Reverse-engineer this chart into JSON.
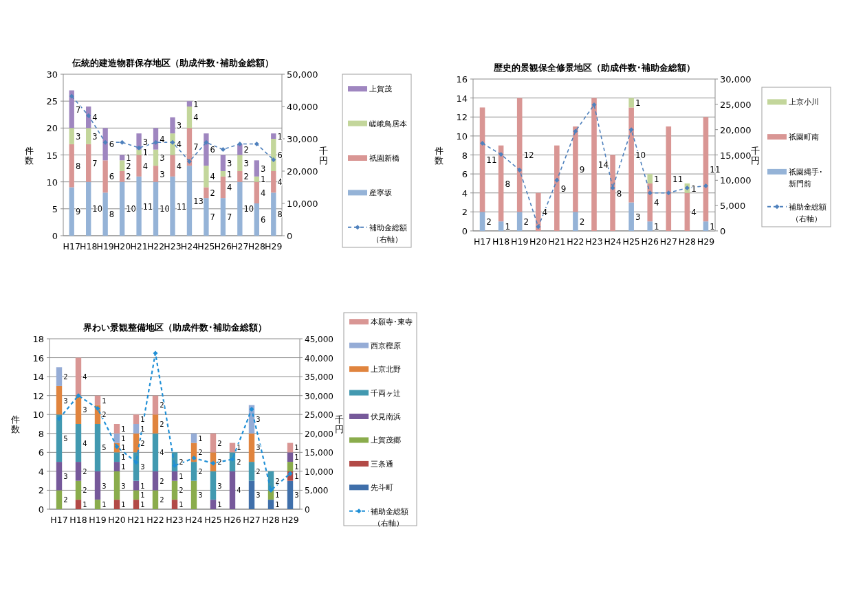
{
  "chart_data": [
    {
      "type": "bar",
      "title": "伝統的建造物群保存地区（助成件数･補助金総額）",
      "stacked": true,
      "grid": "y",
      "legend": "right",
      "ylabel": "件数",
      "y2label": "千円",
      "categories": [
        "H17",
        "H18",
        "H19",
        "H20",
        "H21",
        "H22",
        "H23",
        "H24",
        "H25",
        "H26",
        "H27",
        "H28",
        "H29"
      ],
      "ylim": [
        0,
        30
      ],
      "yticks": [
        0,
        5,
        10,
        15,
        20,
        25,
        30
      ],
      "y2lim": [
        0,
        50000
      ],
      "y2ticks": [
        {
          "value": 0,
          "label": "0"
        },
        {
          "value": 10000,
          "label": "10,000"
        },
        {
          "value": 20000,
          "label": "20,000"
        },
        {
          "value": 30000,
          "label": "30,000"
        },
        {
          "value": 40000,
          "label": "40,000"
        },
        {
          "value": 50000,
          "label": "50,000"
        }
      ],
      "series": [
        {
          "name": "産寧坂",
          "color": "#95b3d7",
          "values": [
            9,
            10,
            8,
            10,
            11,
            10,
            11,
            13,
            7,
            7,
            10,
            6,
            8
          ],
          "value_labels": [
            "9",
            "10",
            "8",
            "10",
            "11",
            "10",
            "11",
            "13",
            "7",
            "7",
            "10",
            "6",
            "8"
          ]
        },
        {
          "name": "祇園新橋",
          "color": "#d99694",
          "values": [
            8,
            7,
            6,
            2,
            4,
            3,
            4,
            7,
            2,
            4,
            2,
            4,
            4
          ],
          "value_labels": [
            "8",
            "7",
            "6",
            "2",
            "4",
            "3",
            "4",
            "7",
            "2",
            "4",
            "2",
            "4",
            "4"
          ]
        },
        {
          "name": "嵯峨鳥居本",
          "color": "#c3d69b",
          "values": [
            3,
            3,
            null,
            2,
            1,
            3,
            4,
            4,
            4,
            1,
            3,
            1,
            6
          ],
          "value_labels": [
            "3",
            "3",
            null,
            "2",
            "1",
            "3",
            "4",
            "4",
            "4",
            "1",
            "3",
            "1",
            "6"
          ]
        },
        {
          "name": "上賀茂",
          "color": "#9f86c0",
          "values": [
            7,
            4,
            6,
            1,
            3,
            4,
            3,
            1,
            6,
            3,
            2,
            3,
            1
          ],
          "value_labels": [
            "7",
            "4",
            "6",
            "1",
            "3",
            "4",
            "3",
            "1",
            "6",
            "3",
            "2",
            "3",
            "1"
          ]
        },
        {
          "name": "補助金総額（右軸）",
          "type": "line",
          "axis": "y2",
          "marker": "diamond",
          "line_style": "dashed",
          "color": "#4f81bd",
          "values": [
            43200,
            37200,
            28900,
            28900,
            27200,
            28900,
            28900,
            23000,
            28900,
            26700,
            28400,
            28400,
            23500
          ]
        }
      ]
    },
    {
      "type": "bar",
      "title": "歴史的景観保全修景地区（助成件数･補助金総額）",
      "stacked": true,
      "grid": "y",
      "legend": "right",
      "ylabel": "件数",
      "y2label": "千円",
      "categories": [
        "H17",
        "H18",
        "H19",
        "H20",
        "H21",
        "H22",
        "H23",
        "H24",
        "H25",
        "H26",
        "H27",
        "H28",
        "H29"
      ],
      "ylim": [
        0,
        16
      ],
      "yticks": [
        0,
        2,
        4,
        6,
        8,
        10,
        12,
        14,
        16
      ],
      "y2lim": [
        0,
        30000
      ],
      "y2ticks": [
        {
          "value": 0,
          "label": "0"
        },
        {
          "value": 5000,
          "label": "5,000"
        },
        {
          "value": 10000,
          "label": "10,000"
        },
        {
          "value": 15000,
          "label": "15,000"
        },
        {
          "value": 20000,
          "label": "20,000"
        },
        {
          "value": 25000,
          "label": "25,000"
        },
        {
          "value": 30000,
          "label": "30,000"
        }
      ],
      "series": [
        {
          "name": "祇園縄手･新門前",
          "color": "#95b3d7",
          "values": [
            2,
            1,
            2,
            null,
            null,
            2,
            null,
            null,
            3,
            1,
            null,
            null,
            1
          ],
          "value_labels": [
            "2",
            "1",
            "2",
            null,
            null,
            "2",
            null,
            null,
            "3",
            "1",
            null,
            null,
            "1"
          ]
        },
        {
          "name": "祇園町南",
          "color": "#d99694",
          "values": [
            11,
            8,
            12,
            4,
            9,
            9,
            14,
            8,
            10,
            4,
            11,
            4,
            11
          ],
          "value_labels": [
            "11",
            "8",
            "12",
            "4",
            "9",
            "9",
            "14",
            "8",
            "10",
            "4",
            "11",
            "4",
            "11"
          ]
        },
        {
          "name": "上京小川",
          "color": "#c3d69b",
          "values": [
            null,
            null,
            null,
            null,
            null,
            null,
            null,
            null,
            1,
            1,
            null,
            1,
            null
          ],
          "value_labels": [
            null,
            null,
            null,
            null,
            null,
            null,
            null,
            null,
            "1",
            "1",
            null,
            "1",
            null
          ]
        },
        {
          "name": "補助金総額（右軸）",
          "type": "line",
          "axis": "y2",
          "marker": "diamond",
          "line_style": "dashed",
          "color": "#4f81bd",
          "values": [
            17300,
            15100,
            12000,
            800,
            10000,
            19700,
            24900,
            8500,
            20000,
            7500,
            7500,
            8500,
            8900
          ]
        }
      ]
    },
    {
      "type": "bar",
      "title": "界わい景観整備地区（助成件数･補助金総額）",
      "stacked": true,
      "grid": "y",
      "legend": "right",
      "ylabel": "件数",
      "y2label": "千円",
      "categories": [
        "H17",
        "H18",
        "H19",
        "H20",
        "H21",
        "H22",
        "H23",
        "H24",
        "H25",
        "H26",
        "H27",
        "H28",
        "H29"
      ],
      "ylim": [
        0,
        18
      ],
      "yticks": [
        0,
        2,
        4,
        6,
        8,
        10,
        12,
        14,
        16,
        18
      ],
      "y2lim": [
        0,
        45000
      ],
      "y2ticks": [
        {
          "value": 0,
          "label": "0"
        },
        {
          "value": 5000,
          "label": "5,000"
        },
        {
          "value": 10000,
          "label": "10,000"
        },
        {
          "value": 15000,
          "label": "15,000"
        },
        {
          "value": 20000,
          "label": "20,000"
        },
        {
          "value": 25000,
          "label": "25,000"
        },
        {
          "value": 30000,
          "label": "30,000"
        },
        {
          "value": 35000,
          "label": "35,000"
        },
        {
          "value": 40000,
          "label": "40,000"
        },
        {
          "value": 45000,
          "label": "45,000"
        }
      ],
      "series": [
        {
          "name": "先斗町",
          "color": "#3f6faa",
          "values": [
            null,
            null,
            null,
            null,
            null,
            null,
            null,
            null,
            null,
            null,
            3,
            1,
            3
          ],
          "value_labels": [
            null,
            null,
            null,
            null,
            null,
            null,
            null,
            null,
            null,
            null,
            "3",
            "1",
            "3"
          ]
        },
        {
          "name": "三条通",
          "color": "#b24a46",
          "values": [
            null,
            1,
            null,
            1,
            1,
            null,
            1,
            null,
            null,
            null,
            null,
            null,
            1
          ],
          "value_labels": [
            null,
            "1",
            null,
            "1",
            "1",
            null,
            "1",
            null,
            null,
            null,
            null,
            null,
            "1"
          ]
        },
        {
          "name": "上賀茂郷",
          "color": "#8aac4c",
          "values": [
            2,
            2,
            1,
            3,
            1,
            2,
            2,
            3,
            null,
            null,
            null,
            1,
            1
          ],
          "value_labels": [
            "2",
            "2",
            "1",
            "3",
            "1",
            "2",
            "2",
            "3",
            null,
            null,
            null,
            "1",
            "1"
          ]
        },
        {
          "name": "伏見南浜",
          "color": "#76599a",
          "values": [
            3,
            2,
            3,
            1,
            1,
            2,
            1,
            null,
            1,
            4,
            null,
            null,
            1
          ],
          "value_labels": [
            "3",
            "2",
            "3",
            "1",
            "1",
            "2",
            "1",
            null,
            "1",
            "4",
            null,
            null,
            "1"
          ]
        },
        {
          "name": "千両ヶ辻",
          "color": "#4299b0",
          "values": [
            5,
            4,
            5,
            1,
            3,
            4,
            2,
            2,
            3,
            2,
            2,
            2,
            null
          ],
          "value_labels": [
            "5",
            "4",
            "5",
            "1",
            "3",
            "4",
            "2",
            "2",
            "3",
            "2",
            "2",
            "2",
            null
          ]
        },
        {
          "name": "上京北野",
          "color": "#e0843e",
          "values": [
            3,
            3,
            2,
            1,
            2,
            2,
            null,
            2,
            2,
            null,
            3,
            null,
            null
          ],
          "value_labels": [
            "3",
            "3",
            "2",
            "1",
            "2",
            "2",
            null,
            "2",
            "2",
            null,
            "3",
            null,
            null
          ]
        },
        {
          "name": "西京樫原",
          "color": "#95acd6",
          "values": [
            2,
            null,
            null,
            1,
            1,
            null,
            null,
            1,
            null,
            null,
            3,
            null,
            null
          ],
          "value_labels": [
            "2",
            null,
            null,
            "1",
            "1",
            null,
            null,
            "1",
            null,
            null,
            "3",
            null,
            null
          ]
        },
        {
          "name": "本願寺･東寺",
          "color": "#d99694",
          "values": [
            null,
            4,
            1,
            1,
            1,
            2,
            null,
            null,
            2,
            1,
            null,
            null,
            1
          ],
          "value_labels": [
            null,
            "4",
            "1",
            "1",
            "1",
            "2",
            null,
            null,
            "2",
            "1",
            null,
            null,
            "1"
          ]
        },
        {
          "name": "補助金総額（右軸）",
          "type": "line",
          "axis": "y2",
          "marker": "diamond",
          "line_style": "dashed",
          "color": "#1f8fd6",
          "values": [
            23900,
            30000,
            26600,
            16500,
            12400,
            41200,
            11500,
            13500,
            12100,
            13200,
            26400,
            5000,
            9400
          ]
        }
      ]
    }
  ]
}
